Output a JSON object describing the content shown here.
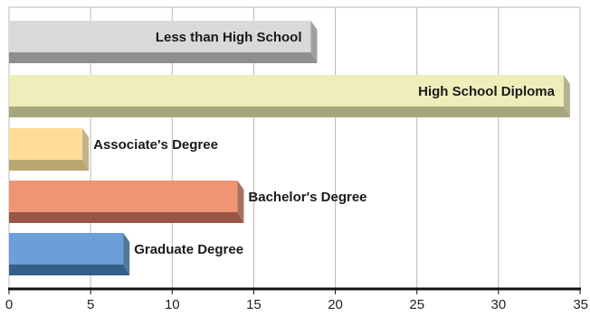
{
  "chart_data": {
    "type": "bar",
    "orientation": "horizontal",
    "style": "3d",
    "title": "",
    "xlabel": "",
    "ylabel": "",
    "xlim": [
      0,
      35
    ],
    "xticks": [
      0,
      5,
      10,
      15,
      20,
      25,
      30,
      35
    ],
    "grid": true,
    "legend": "none",
    "categories": [
      "Less than High School",
      "High School Diploma",
      "Associate's Degree",
      "Bachelor's Degree",
      "Graduate Degree"
    ],
    "values": [
      18.5,
      34,
      4.5,
      14,
      7
    ],
    "colors": [
      "#d9d9d9",
      "#eeeebb",
      "#fedd98",
      "#ee9674",
      "#6c9fda"
    ],
    "shadow_colors": [
      "#8e8e8e",
      "#a6a67c",
      "#b9a772",
      "#995646",
      "#345f86"
    ]
  }
}
